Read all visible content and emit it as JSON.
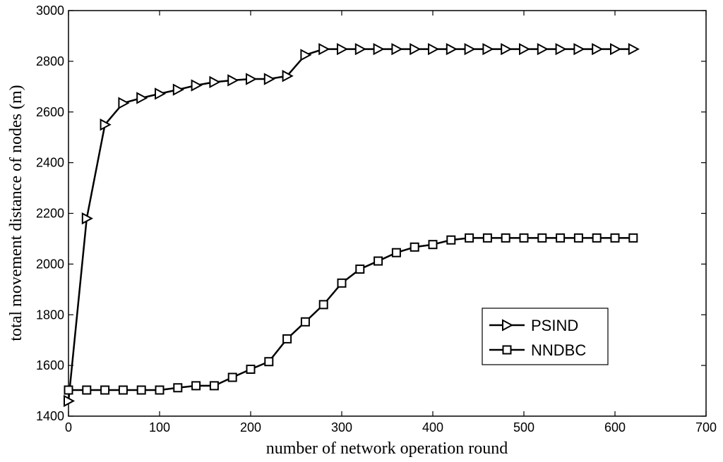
{
  "chart_data": {
    "type": "line",
    "title": "",
    "xlabel": "number of network operation round",
    "ylabel": "total movement distance of nodes (m)",
    "xlim": [
      0,
      700
    ],
    "ylim": [
      1400,
      3000
    ],
    "x_ticks": [
      0,
      100,
      200,
      300,
      400,
      500,
      600,
      700
    ],
    "y_ticks": [
      1400,
      1600,
      1800,
      2000,
      2200,
      2400,
      2600,
      2800,
      3000
    ],
    "grid": false,
    "legend_position": "bottom-right",
    "x": [
      0,
      20,
      40,
      60,
      80,
      100,
      120,
      140,
      160,
      180,
      200,
      220,
      240,
      260,
      280,
      300,
      320,
      340,
      360,
      380,
      400,
      420,
      440,
      460,
      480,
      500,
      520,
      540,
      560,
      580,
      600,
      620
    ],
    "series": [
      {
        "name": "PSIND",
        "marker": "triangle-right",
        "values": [
          1460,
          2180,
          2550,
          2635,
          2655,
          2672,
          2688,
          2705,
          2718,
          2725,
          2730,
          2730,
          2742,
          2825,
          2848,
          2848,
          2848,
          2848,
          2848,
          2848,
          2848,
          2848,
          2848,
          2848,
          2848,
          2848,
          2848,
          2848,
          2848,
          2848,
          2848,
          2848
        ]
      },
      {
        "name": "NNDBC",
        "marker": "square",
        "values": [
          1503,
          1503,
          1503,
          1503,
          1503,
          1503,
          1512,
          1520,
          1520,
          1553,
          1585,
          1615,
          1705,
          1772,
          1840,
          1925,
          1980,
          2012,
          2045,
          2067,
          2077,
          2095,
          2103,
          2103,
          2103,
          2103,
          2103,
          2103,
          2103,
          2103,
          2103,
          2103
        ]
      }
    ]
  }
}
